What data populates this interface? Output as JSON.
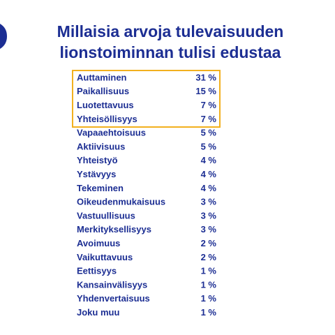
{
  "header": {
    "title": [
      "Millaisia arvoja tulevaisuuden",
      "lionstoiminnan tulisi edustaa"
    ]
  },
  "table": {
    "rows": [
      [
        "Auttaminen",
        "31 %"
      ],
      [
        "Paikallisuus",
        "15 %"
      ],
      [
        "Luotettavuus",
        "7 %"
      ],
      [
        "Yhteisöllisyys",
        "7 %"
      ],
      [
        "Vapaaehtoisuus",
        "5 %"
      ],
      [
        "Aktiivisuus",
        "5 %"
      ],
      [
        "Yhteistyö",
        "4 %"
      ],
      [
        "Ystävyys",
        "4 %"
      ],
      [
        "Tekeminen",
        "4 %"
      ],
      [
        "Oikeudenmukaisuus",
        "3 %"
      ],
      [
        "Vastuullisuus",
        "3 %"
      ],
      [
        "Merkityksellisyys",
        "3 %"
      ],
      [
        "Avoimuus",
        "2 %"
      ],
      [
        "Vaikuttavuus",
        "2 %"
      ],
      [
        "Eettisyys",
        "1 %"
      ],
      [
        "Kansainvälisyys",
        "1 %"
      ],
      [
        "Yhdenvertaisuus",
        "1 %"
      ],
      [
        "Joku muu",
        "1 %"
      ]
    ]
  }
}
